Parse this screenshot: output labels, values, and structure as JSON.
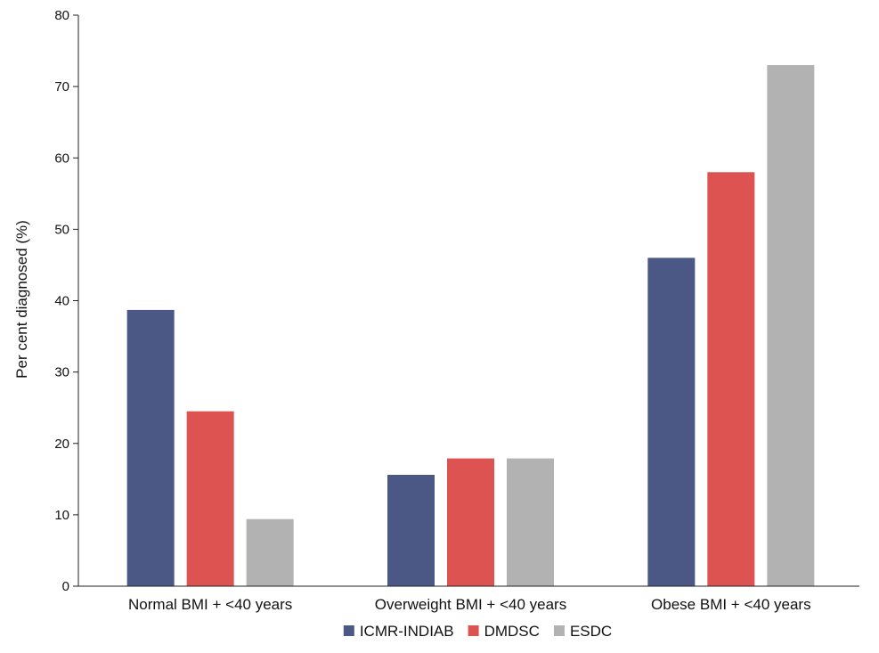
{
  "chart_data": {
    "type": "bar",
    "categories": [
      "Normal BMI + <40 years",
      "Overweight BMI + <40 years",
      "Obese BMI + <40 years"
    ],
    "series": [
      {
        "name": "ICMR-INDIAB",
        "color": "#4b5886",
        "values": [
          38.7,
          15.6,
          46.0
        ]
      },
      {
        "name": "DMDSC",
        "color": "#dd5351",
        "values": [
          24.5,
          17.9,
          58.0
        ]
      },
      {
        "name": "ESDC",
        "color": "#b2b2b2",
        "values": [
          9.4,
          17.9,
          73.0
        ]
      }
    ],
    "title": "",
    "xlabel": "",
    "ylabel": "Per cent diagnosed (%)",
    "ylim": [
      0,
      80
    ],
    "yticks": [
      0,
      10,
      20,
      30,
      40,
      50,
      60,
      70,
      80
    ],
    "grid": false,
    "legend_position": "bottom-center"
  }
}
